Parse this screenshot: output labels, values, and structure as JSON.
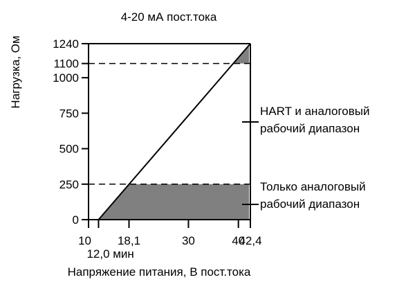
{
  "chart_data": {
    "type": "line",
    "title": "4-20 мА пост.тока",
    "xlabel": "Напряжение питания, В пост.тока",
    "ylabel": "Нагрузка, Ом",
    "xlim": [
      10,
      42.4
    ],
    "ylim": [
      0,
      1240
    ],
    "x_ticks": [
      {
        "value": 10,
        "label": "10"
      },
      {
        "value": 18.1,
        "label": "18,1"
      },
      {
        "value": 30,
        "label": "30"
      },
      {
        "value": 40,
        "label": "40"
      },
      {
        "value": 42.4,
        "label": "42,4"
      }
    ],
    "x_min_label": {
      "value": 12.0,
      "label": "12,0 мин"
    },
    "y_ticks": [
      {
        "value": 0,
        "label": "0"
      },
      {
        "value": 250,
        "label": "250"
      },
      {
        "value": 500,
        "label": "500"
      },
      {
        "value": 750,
        "label": "750"
      },
      {
        "value": 1000,
        "label": "1000"
      },
      {
        "value": 1100,
        "label": "1100"
      },
      {
        "value": 1240,
        "label": "1240"
      }
    ],
    "series": [
      {
        "x": [
          12.0,
          42.4
        ],
        "y": [
          0,
          1240
        ]
      }
    ],
    "reference_lines": [
      {
        "y": 1100,
        "style": "dashed"
      },
      {
        "y": 250,
        "style": "dashed"
      }
    ],
    "regions": [
      {
        "label": "HART и аналоговый рабочий диапазон",
        "lines": [
          "HART и аналоговый",
          "рабочий диапазон"
        ],
        "y_from": 250,
        "y_to": 1100,
        "shaded": false
      },
      {
        "label": "Только аналоговый рабочий диапазон",
        "lines": [
          "Только аналоговый",
          "рабочий диапазон"
        ],
        "y_from": 0,
        "y_to": 250,
        "shaded": true
      },
      {
        "label": "",
        "y_from": 1100,
        "y_to": 1240,
        "shaded": true
      }
    ],
    "colors": {
      "shade": "#808080",
      "line": "#000000"
    },
    "grid": false
  }
}
